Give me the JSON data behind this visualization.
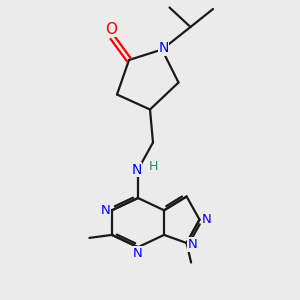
{
  "bg_color": "#ebebeb",
  "bond_color": "#1a1a1a",
  "N_color": "#0000ff",
  "O_color": "#ff0000",
  "NH_color": "#2e8b57",
  "line_width": 1.6,
  "fig_size": [
    3.0,
    3.0
  ],
  "dpi": 100,
  "xlim": [
    0,
    10
  ],
  "ylim": [
    0,
    10
  ]
}
